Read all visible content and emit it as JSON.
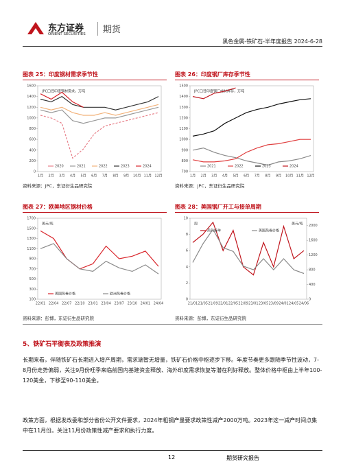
{
  "header": {
    "logo_cn": "东方证券",
    "logo_en": "ORIENT SECURITIES",
    "division": "期货",
    "report": "黑色金属-铁矿石-半年度报告 2024-6-28"
  },
  "figures": [
    {
      "title": "图表 25：印度钢材需求季节性",
      "source": "资料来源：JPC，东证衍生品研究院",
      "chart_data": {
        "type": "line",
        "note": "JPC口径印度钢材需求，万吨",
        "legend": "bottom",
        "grid": false,
        "categories": [
          "1月",
          "2月",
          "3月",
          "4月",
          "5月",
          "6月",
          "7月",
          "8月",
          "9月",
          "10月",
          "11月",
          "12月"
        ],
        "ylim": [
          0,
          1600
        ],
        "yticks": [
          0,
          200,
          400,
          600,
          800,
          1000,
          1200,
          1400,
          1600
        ],
        "series": [
          {
            "name": "2020",
            "color": "#e8808a",
            "dashed": true,
            "values": [
              1050,
              1000,
              900,
              250,
              420,
              700,
              850,
              900,
              950,
              1000,
              1050,
              1100
            ]
          },
          {
            "name": "2021",
            "color": "#999999",
            "values": [
              1150,
              1100,
              1150,
              950,
              900,
              950,
              1000,
              1000,
              1050,
              1100,
              1150,
              1200
            ]
          },
          {
            "name": "2022",
            "color": "#f2b27a",
            "values": [
              1200,
              1150,
              1200,
              1100,
              1050,
              1050,
              1100,
              1050,
              1100,
              1150,
              1200,
              1250
            ]
          },
          {
            "name": "2023",
            "color": "#333333",
            "values": [
              1350,
              1300,
              1400,
              1250,
              1200,
              1200,
              1200,
              1150,
              1200,
              1250,
              1300,
              1400
            ]
          },
          {
            "name": "2024",
            "color": "#d9262c",
            "values": [
              1450,
              1350,
              1480,
              1300,
              1200,
              null,
              null,
              null,
              null,
              null,
              null,
              null
            ]
          }
        ]
      }
    },
    {
      "title": "图表 26：印度钢厂库存季节性",
      "source": "资料来源：JPC，东证衍生品研究院",
      "chart_data": {
        "type": "line",
        "note": "JPC口径印度钢厂成材库存，万吨",
        "legend": "bottom",
        "grid": false,
        "categories": [
          "1月",
          "2月",
          "3月",
          "4月",
          "5月",
          "6月",
          "7月",
          "8月",
          "9月",
          "10月",
          "11月",
          "12月"
        ],
        "ylim": [
          700,
          1500
        ],
        "yticks": [
          700,
          800,
          900,
          1000,
          1100,
          1200,
          1300,
          1400,
          1500
        ],
        "series": [
          {
            "name": "2021",
            "color": "#8a8a8a",
            "values": [
              900,
              920,
              880,
              850,
              830,
              800,
              780,
              760,
              790,
              800,
              820,
              850
            ]
          },
          {
            "name": "2022",
            "color": "#e04040",
            "values": [
              810,
              790,
              790,
              800,
              820,
              880,
              920,
              950,
              960,
              980,
              1000,
              1000
            ]
          },
          {
            "name": "2023",
            "color": "#111111",
            "values": [
              1030,
              1050,
              1080,
              1150,
              1200,
              1250,
              1280,
              1300,
              1330,
              1350,
              1370,
              1380
            ]
          },
          {
            "name": "2024",
            "color": "#c0141c",
            "values": [
              1400,
              1380,
              1430,
              1450,
              1480,
              null,
              null,
              null,
              null,
              null,
              null,
              null
            ]
          }
        ]
      }
    },
    {
      "title": "图表 27：欧美地区钢材价格",
      "source": "资料来源：彭博，东证衍生品研究院",
      "chart_data": {
        "type": "line",
        "note": "美元/吨",
        "legend": "bottom",
        "grid": false,
        "categories": [
          "22/01",
          "22/04",
          "22/07",
          "22/10",
          "23/01",
          "23/04",
          "23/07",
          "23/10",
          "24/01",
          "24/04"
        ],
        "ylim": [
          100,
          1700
        ],
        "yticks": [
          100,
          300,
          500,
          700,
          900,
          1100,
          1300,
          1500,
          1700
        ],
        "series": [
          {
            "name": "美国热卷价格",
            "color": "#d9262c",
            "values": [
              1450,
              1300,
              900,
              700,
              800,
              1150,
              900,
              950,
              1050,
              750
            ]
          },
          {
            "name": "欧洲热卷价格",
            "color": "#8a8a8a",
            "values": [
              1100,
              1200,
              900,
              700,
              650,
              850,
              720,
              650,
              780,
              600
            ]
          }
        ]
      }
    },
    {
      "title": "图表 28：美国钢厂开工与接单周期",
      "source": "资料来源：彭博，东证衍生品研究院",
      "chart_data": {
        "type": "line",
        "note": "周",
        "note2": "美元/吨",
        "legend": "top",
        "grid": false,
        "categories": [
          "21/01",
          "21/05",
          "21/09",
          "22/01",
          "22/05",
          "22/09",
          "23/01",
          "23/05",
          "23/09",
          "24/01",
          "24/05",
          "24/06"
        ],
        "ylim": [
          0,
          10
        ],
        "yticks": [
          0,
          2,
          4,
          6,
          8,
          10
        ],
        "y2lim": [
          0,
          2200
        ],
        "y2ticks": [
          0,
          400,
          800,
          1200,
          1600,
          2000
        ],
        "series": [
          {
            "name": "热轧接单",
            "color": "#c0141c",
            "values": [
              7,
              8,
              9.5,
              6,
              8.5,
              4,
              3,
              7,
              4,
              9,
              5,
              6
            ]
          },
          {
            "name": "美国热卷价格",
            "color": "#8a8a8a",
            "axis": "y2",
            "values": [
              1000,
              1500,
              1900,
              1400,
              1300,
              900,
              800,
              1100,
              800,
              1100,
              800,
              700
            ]
          }
        ]
      }
    }
  ],
  "section": {
    "heading": "5、铁矿石平衡表及政策推演",
    "paragraphs": [
      "长期来看，伴随铁矿石长期进入增产周期，需求端暂无增量，铁矿石价格中枢逐步下移。年度节奏更多跟随季节性波动，7-8月份走势偏弱，关注9月份旺季来临前国内基建资金释放、海外印度需求恢复等潜在利好释放。整体价格中枢由上半年100-120美金，下移至90-110美金。",
      "政策方面，根据发改委和部分省份公开文件要求，2024年粗钢产量要求政策性减产2000万吨。2023年这一减产时间点集中在11月份。关注11月份政策性减产要求和执行力度。"
    ]
  },
  "footer": {
    "page": "12",
    "label": "期货研究报告"
  }
}
